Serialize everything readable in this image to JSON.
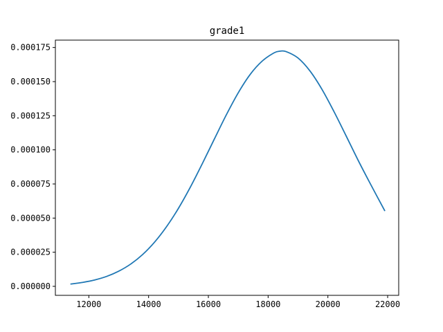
{
  "chart_data": {
    "type": "line",
    "title": "grade1",
    "xlabel": "",
    "ylabel": "",
    "xlim": [
      10880,
      22370
    ],
    "ylim": [
      -6.6e-06,
      0.0001804
    ],
    "grid": false,
    "legend": "none",
    "x_ticks": [
      {
        "value": 12000,
        "label": "12000"
      },
      {
        "value": 14000,
        "label": "14000"
      },
      {
        "value": 16000,
        "label": "16000"
      },
      {
        "value": 18000,
        "label": "18000"
      },
      {
        "value": 20000,
        "label": "20000"
      },
      {
        "value": 22000,
        "label": "22000"
      }
    ],
    "y_ticks": [
      {
        "value": 0.0,
        "label": "0.000000"
      },
      {
        "value": 2.5e-05,
        "label": "0.000025"
      },
      {
        "value": 5e-05,
        "label": "0.000050"
      },
      {
        "value": 7.5e-05,
        "label": "0.000075"
      },
      {
        "value": 0.0001,
        "label": "0.000100"
      },
      {
        "value": 0.000125,
        "label": "0.000125"
      },
      {
        "value": 0.00015,
        "label": "0.000150"
      },
      {
        "value": 0.000175,
        "label": "0.000175"
      }
    ],
    "series": [
      {
        "color": "#1f77b4",
        "x": [
          11400,
          11800,
          12200,
          12600,
          13000,
          13400,
          13800,
          14200,
          14600,
          15000,
          15400,
          15800,
          16200,
          16600,
          17000,
          17400,
          17800,
          18200,
          18400,
          18600,
          19000,
          19400,
          19800,
          20200,
          20600,
          21000,
          21400,
          21900
        ],
        "y": [
          1.7e-06,
          2.9e-06,
          4.7e-06,
          7.3e-06,
          1.11e-05,
          1.63e-05,
          2.33e-05,
          3.24e-05,
          4.37e-05,
          5.72e-05,
          7.28e-05,
          9e-05,
          0.0001079,
          0.0001256,
          0.0001418,
          0.0001553,
          0.000165,
          0.0001711,
          0.0001723,
          0.000172,
          0.0001673,
          0.0001578,
          0.0001444,
          0.0001282,
          0.0001107,
          9.29e-05,
          7.6e-05,
          5.55e-05
        ]
      }
    ]
  }
}
